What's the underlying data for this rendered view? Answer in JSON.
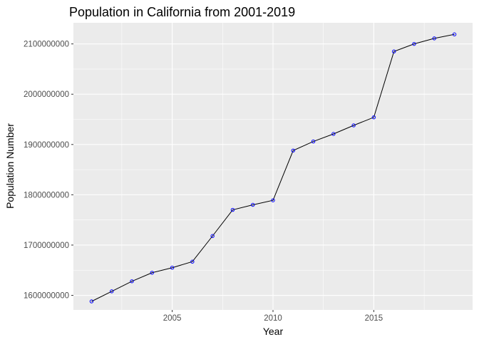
{
  "chart_data": {
    "type": "line",
    "title": "Population in California from 2001-2019",
    "xlabel": "Year",
    "ylabel": "Population Number",
    "x": [
      2001,
      2002,
      2003,
      2004,
      2005,
      2006,
      2007,
      2008,
      2009,
      2010,
      2011,
      2012,
      2013,
      2014,
      2015,
      2016,
      2017,
      2018,
      2019
    ],
    "series": [
      {
        "values": [
          1588000000,
          1608000000,
          1628000000,
          1645000000,
          1655000000,
          1667000000,
          1718000000,
          1770000000,
          1780000000,
          1789000000,
          1888000000,
          1906000000,
          1921000000,
          1938000000,
          1954000000,
          2085000000,
          2100000000,
          2111000000,
          2119000000
        ],
        "point_color": "#0000ff",
        "line_color": "#000000"
      }
    ],
    "xlim": [
      2000.1,
      2019.9
    ],
    "ylim": [
      1571000000,
      2142000000
    ],
    "x_ticks": [
      2005,
      2010,
      2015
    ],
    "x_tick_labels": [
      "2005",
      "2010",
      "2015"
    ],
    "y_ticks": [
      1600000000,
      1700000000,
      1800000000,
      1900000000,
      2000000000,
      2100000000
    ],
    "y_tick_labels": [
      "1600000000",
      "1700000000",
      "1800000000",
      "1900000000",
      "2000000000",
      "2100000000"
    ],
    "grid": true,
    "panel_background": "#ebebeb",
    "grid_color": "#ffffff"
  }
}
